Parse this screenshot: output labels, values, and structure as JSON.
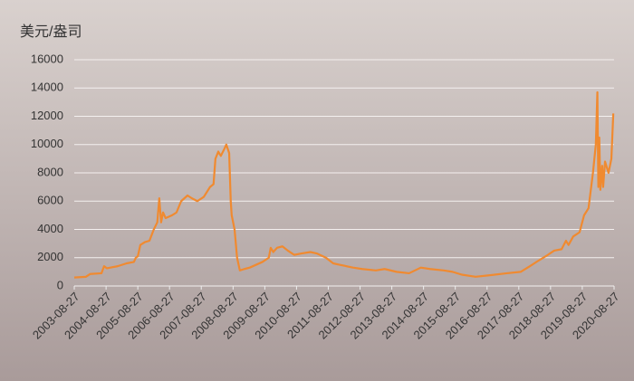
{
  "chart_data": {
    "type": "line",
    "y_label": "美元/盎司",
    "x": [
      "2003-08-27",
      "2004-01-08",
      "2004-02-27",
      "2004-07-05",
      "2004-08-04",
      "2004-09-06",
      "2005-01-08",
      "2005-04-20",
      "2005-07-13",
      "2005-08-04",
      "2005-08-27",
      "2005-09-25",
      "2005-11-15",
      "2006-01-08",
      "2006-02-27",
      "2006-04-08",
      "2006-05-01",
      "2006-05-22",
      "2006-06-13",
      "2006-07-13",
      "2006-09-25",
      "2006-11-15",
      "2007-01-08",
      "2007-03-22",
      "2007-05-11",
      "2007-07-13",
      "2007-09-25",
      "2007-12-06",
      "2008-01-15",
      "2008-02-06",
      "2008-03-10",
      "2008-04-08",
      "2008-05-19",
      "2008-06-10",
      "2008-07-13",
      "2008-07-31",
      "2008-08-11",
      "2008-09-13",
      "2008-10-12",
      "2008-11-13",
      "2009-01-04",
      "2009-03-07",
      "2009-05-19",
      "2009-07-31",
      "2009-10-12",
      "2009-11-03",
      "2009-12-02",
      "2010-01-15",
      "2010-03-18",
      "2010-05-19",
      "2010-07-31",
      "2010-10-23",
      "2011-02-02",
      "2011-04-16",
      "2011-07-31",
      "2011-10-23",
      "2012-01-04",
      "2012-06-06",
      "2012-09-20",
      "2013-02-24",
      "2013-06-06",
      "2013-10-20",
      "2014-03-14",
      "2014-07-27",
      "2014-11-10",
      "2015-04-16",
      "2015-07-27",
      "2015-11-10",
      "2016-04-16",
      "2016-09-17",
      "2017-04-12",
      "2017-09-17",
      "2018-01-01",
      "2018-04-12",
      "2018-07-27",
      "2018-10-08",
      "2019-01-01",
      "2019-02-21",
      "2019-03-22",
      "2019-05-15",
      "2019-07-27",
      "2019-09-17",
      "2019-11-07",
      "2019-12-28",
      "2020-01-30",
      "2020-02-17",
      "2020-02-28",
      "2020-03-10",
      "2020-03-22",
      "2020-04-12",
      "2020-04-23",
      "2020-05-15",
      "2020-06-24",
      "2020-07-27",
      "2020-08-18"
    ],
    "series": [
      {
        "color": "#f08a30",
        "values": [
          600,
          650,
          850,
          900,
          1400,
          1250,
          1400,
          1600,
          1700,
          2000,
          2100,
          2900,
          3100,
          3200,
          4000,
          4500,
          6200,
          4500,
          5200,
          4800,
          5000,
          5200,
          6000,
          6400,
          6200,
          6000,
          6300,
          7000,
          7200,
          9000,
          9500,
          9200,
          9700,
          10000,
          9400,
          6000,
          5000,
          4000,
          2000,
          1100,
          1200,
          1300,
          1500,
          1700,
          2000,
          2700,
          2400,
          2700,
          2800,
          2500,
          2200,
          2300,
          2400,
          2300,
          2000,
          1600,
          1500,
          1300,
          1200,
          1100,
          1200,
          1000,
          900,
          1300,
          1200,
          1100,
          1000,
          800,
          650,
          750,
          900,
          1000,
          1400,
          1800,
          2200,
          2500,
          2600,
          3200,
          2900,
          3500,
          3800,
          5000,
          5500,
          8000,
          10000,
          13700,
          7000,
          10500,
          6800,
          8500,
          7000,
          8800,
          8000,
          9000,
          12200
        ]
      }
    ],
    "xlim": [
      "2003-08-27",
      "2020-08-27"
    ],
    "xticks": [
      "2003-08-27",
      "2004-08-27",
      "2005-08-27",
      "2006-08-27",
      "2007-08-27",
      "2008-08-27",
      "2009-08-27",
      "2010-08-27",
      "2011-08-27",
      "2012-08-27",
      "2013-08-27",
      "2014-08-27",
      "2015-08-27",
      "2016-08-27",
      "2017-08-27",
      "2018-08-27",
      "2019-08-27",
      "2020-08-27"
    ],
    "ylim": [
      0,
      16000
    ],
    "yticks": [
      0,
      2000,
      4000,
      6000,
      8000,
      10000,
      12000,
      14000,
      16000
    ],
    "grid": true
  }
}
